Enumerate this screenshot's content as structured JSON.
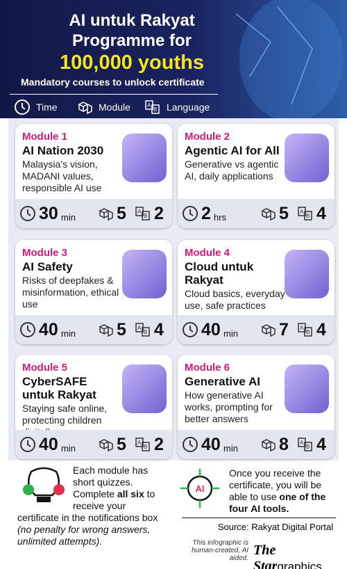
{
  "header": {
    "title_lines": [
      "AI untuk Rakyat",
      "Programme for"
    ],
    "highlight": "100,000 youths",
    "subtitle": "Mandatory courses to unlock certificate",
    "legend": [
      "Time",
      "Module",
      "Language"
    ]
  },
  "modules": [
    {
      "label": "Module 1",
      "title": "AI Nation 2030",
      "description": "Malaysia’s vision, MADANI values, responsible AI use",
      "time": 30,
      "time_unit": "min",
      "modules": 5,
      "languages": 2
    },
    {
      "label": "Module 2",
      "title": "Agentic AI for All",
      "description": "Generative vs agentic AI, daily applications",
      "time": 2,
      "time_unit": "hrs",
      "modules": 5,
      "languages": 4
    },
    {
      "label": "Module 3",
      "title": "AI Safety",
      "description": "Risks of deepfakes & misinformation, ethical use",
      "time": 40,
      "time_unit": "min",
      "modules": 5,
      "languages": 4
    },
    {
      "label": "Module 4",
      "title": "Cloud untuk Rakyat",
      "description": "Cloud basics, everyday use, safe practices",
      "time": 40,
      "time_unit": "min",
      "modules": 7,
      "languages": 4
    },
    {
      "label": "Module 5",
      "title": "CyberSAFE untuk Rakyat",
      "description": "Staying safe online, protecting children digitally",
      "time": 40,
      "time_unit": "min",
      "modules": 5,
      "languages": 2
    },
    {
      "label": "Module 6",
      "title": "Generative AI",
      "description": "How generative AI works, prompting for better answers",
      "time": 40,
      "time_unit": "min",
      "modules": 8,
      "languages": 4
    }
  ],
  "footer": {
    "left_note": {
      "text_before": "Each module has short quizzes. Complete",
      "bold": "all six",
      "text_after": "to receive your certificate in the notifications box",
      "italic": "(no penalty for wrong answers, unlimited attempts)."
    },
    "right_note": {
      "text_before": "Once you receive the certificate, you will be able to use",
      "bold": "one of the four",
      "text_after": "AI tools."
    },
    "source": "Source: Rakyat Digital Portal",
    "disclaimer": "This infographic is human-created, AI aided.",
    "brand": {
      "name": "The Star",
      "suffix": "graphics"
    }
  }
}
